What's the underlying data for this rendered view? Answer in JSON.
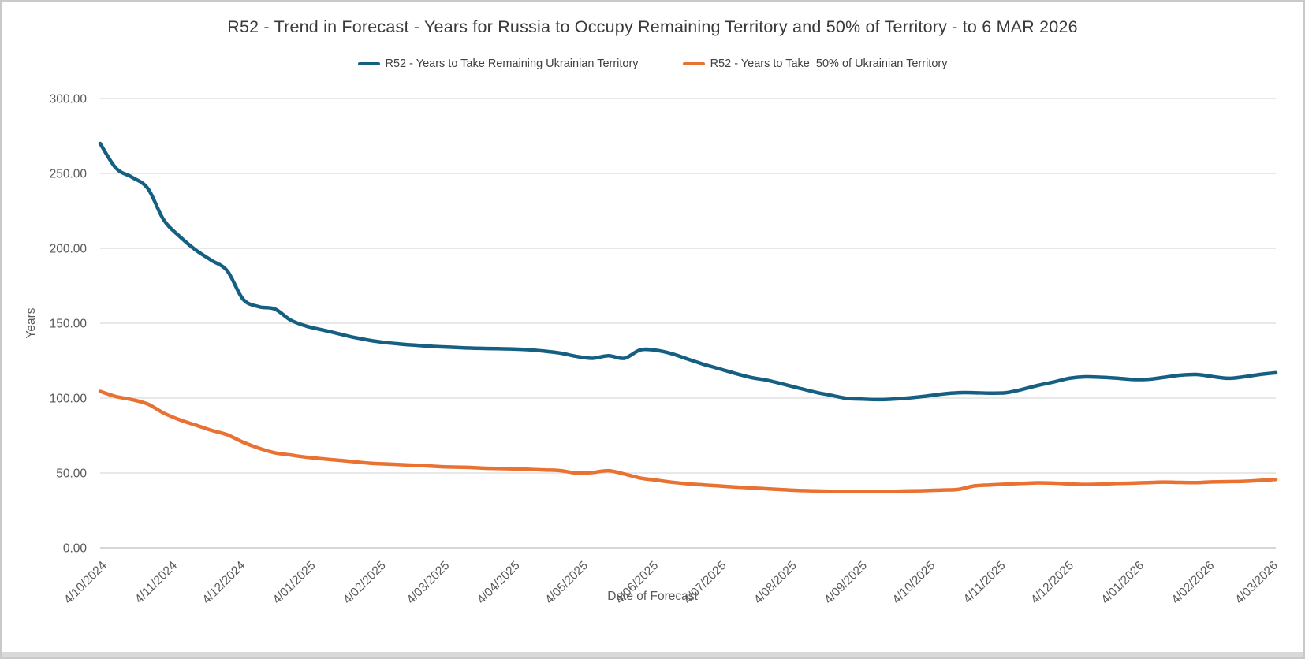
{
  "window": {
    "background": "#ffffff",
    "border_color": "#c9c9c9",
    "bottom_strip_color": "#d9d9d9"
  },
  "title": "R52 - Trend in Forecast - Years for Russia to Occupy Remaining Territory and 50% of Territory - to 6 MAR 2026",
  "legend": {
    "items": [
      {
        "label": "R52 - Years to Take Remaining Ukrainian Territory",
        "color": "#156082"
      },
      {
        "label": "R52 - Years to Take  50% of Ukrainian Territory",
        "color": "#E97132"
      }
    ]
  },
  "axes": {
    "y_title": "Years",
    "x_title": "Date of Forecast"
  },
  "chart_data": {
    "type": "line",
    "title": "R52 - Trend in Forecast - Years for Russia to Occupy Remaining Territory and 50% of Territory - to 6 MAR 2026",
    "xlabel": "Date of Forecast",
    "ylabel": "Years",
    "ylim": [
      0,
      300
    ],
    "ytick_step": 50,
    "ytick_labels": [
      "0.00",
      "50.00",
      "100.00",
      "150.00",
      "200.00",
      "250.00",
      "300.00"
    ],
    "grid": "horizontal",
    "legend_position": "top",
    "x_start_date": "2024-10-04",
    "x_end_date": "2026-03-06",
    "point_interval_days": 7,
    "x_tick_dates": [
      "2024-10-04",
      "2024-11-04",
      "2024-12-04",
      "2025-01-04",
      "2025-02-04",
      "2025-03-04",
      "2025-04-04",
      "2025-05-04",
      "2025-06-04",
      "2025-07-04",
      "2025-08-04",
      "2025-09-04",
      "2025-10-04",
      "2025-11-04",
      "2025-12-04",
      "2026-01-04",
      "2026-02-04",
      "2026-03-04"
    ],
    "x_tick_labels": [
      "4/10/2024",
      "4/11/2024",
      "4/12/2024",
      "4/01/2025",
      "4/02/2025",
      "4/03/2025",
      "4/04/2025",
      "4/05/2025",
      "4/06/2025",
      "4/07/2025",
      "4/08/2025",
      "4/09/2025",
      "4/10/2025",
      "4/11/2025",
      "4/12/2025",
      "4/01/2026",
      "4/02/2026",
      "4/03/2026"
    ],
    "series": [
      {
        "name": "R52 - Years to Take Remaining Ukrainian Territory",
        "color": "#156082",
        "values": [
          270,
          253.5,
          247.5,
          240,
          219,
          208,
          199,
          192,
          185,
          166,
          161,
          159.5,
          152,
          148,
          145.5,
          143,
          140.5,
          138.5,
          137,
          136,
          135.2,
          134.5,
          134,
          133.5,
          133.2,
          133,
          132.8,
          132.3,
          131.3,
          130,
          127.8,
          126.6,
          128.3,
          126.6,
          132.2,
          131.9,
          129.6,
          126,
          122.5,
          119.5,
          116.4,
          113.7,
          111.9,
          109.3,
          106.6,
          104,
          101.9,
          99.8,
          99.3,
          99,
          99.4,
          100.2,
          101.3,
          102.7,
          103.6,
          103.6,
          103.3,
          103.6,
          105.7,
          108.4,
          110.7,
          113.2,
          114.2,
          113.9,
          113.3,
          112.4,
          112.6,
          113.9,
          115.3,
          115.8,
          114.4,
          113.2,
          114.2,
          115.8,
          116.9
        ]
      },
      {
        "name": "R52 - Years to Take  50% of Ukrainian Territory",
        "color": "#E97132",
        "values": [
          104.5,
          101,
          99,
          96,
          90,
          85.5,
          82,
          78.5,
          75.5,
          70.5,
          66.5,
          63.5,
          62,
          60.5,
          59.5,
          58.5,
          57.5,
          56.5,
          56,
          55.5,
          55,
          54.5,
          54,
          53.8,
          53.3,
          53,
          52.8,
          52.4,
          52,
          51.5,
          49.9,
          50.3,
          51.5,
          49.3,
          46.6,
          45.2,
          43.8,
          42.8,
          42,
          41.3,
          40.6,
          40,
          39.4,
          38.8,
          38.3,
          38,
          37.8,
          37.6,
          37.5,
          37.6,
          37.8,
          38,
          38.2,
          38.6,
          39,
          41.3,
          42,
          42.5,
          43,
          43.4,
          43.2,
          42.7,
          42.3,
          42.5,
          43,
          43.2,
          43.6,
          43.9,
          43.7,
          43.6,
          44,
          44.2,
          44.4,
          45,
          45.7
        ]
      }
    ],
    "style": {
      "grid_color": "#d9d9d9",
      "axis_line_color": "#bfbfbf",
      "tick_label_color": "#595959",
      "line_width": 4.5
    }
  }
}
